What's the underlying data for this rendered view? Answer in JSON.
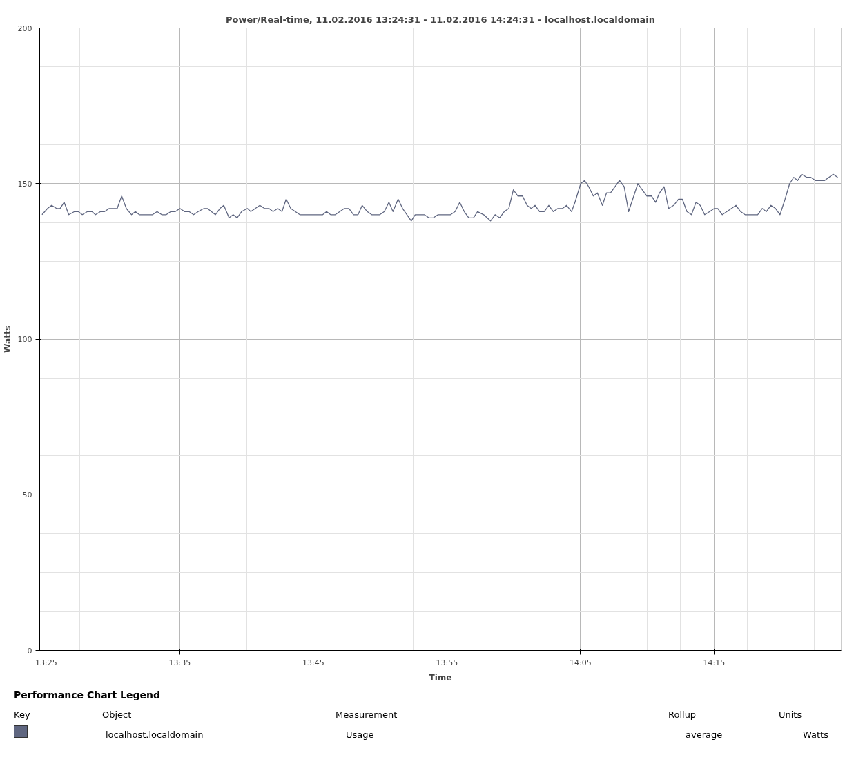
{
  "chart_data": {
    "type": "line",
    "title": "Power/Real-time, 11.02.2016 13:24:31 - 11.02.2016 14:24:31 - localhost.localdomain",
    "xlabel": "Time",
    "ylabel": "Watts",
    "legend_title": "Performance Chart Legend",
    "legend": "bottom",
    "grid": true,
    "marker": "none",
    "line_style": "solid",
    "xlim": [
      13.40861,
      14.40861
    ],
    "ylim": [
      0,
      200
    ],
    "xticks": [
      {
        "value": 13.41667,
        "label": "13:25"
      },
      {
        "value": 13.45833,
        "label": null
      },
      {
        "value": 13.5,
        "label": null
      },
      {
        "value": 13.54167,
        "label": null
      },
      {
        "value": 13.58333,
        "label": "13:35"
      },
      {
        "value": 13.625,
        "label": null
      },
      {
        "value": 13.66667,
        "label": null
      },
      {
        "value": 13.70833,
        "label": null
      },
      {
        "value": 13.75,
        "label": "13:45"
      },
      {
        "value": 13.79167,
        "label": null
      },
      {
        "value": 13.83333,
        "label": null
      },
      {
        "value": 13.875,
        "label": null
      },
      {
        "value": 13.91667,
        "label": "13:55"
      },
      {
        "value": 13.95833,
        "label": null
      },
      {
        "value": 14.0,
        "label": null
      },
      {
        "value": 14.04167,
        "label": null
      },
      {
        "value": 14.08333,
        "label": "14:05"
      },
      {
        "value": 14.125,
        "label": null
      },
      {
        "value": 14.16667,
        "label": null
      },
      {
        "value": 14.20833,
        "label": null
      },
      {
        "value": 14.25,
        "label": "14:15"
      },
      {
        "value": 14.29167,
        "label": null
      },
      {
        "value": 14.33333,
        "label": null
      },
      {
        "value": 14.375,
        "label": null
      }
    ],
    "yticks": [
      0,
      {
        "value": 12.5,
        "label": null
      },
      {
        "value": 25,
        "label": null
      },
      {
        "value": 37.5,
        "label": null
      },
      50,
      {
        "value": 62.5,
        "label": null
      },
      {
        "value": 75,
        "label": null
      },
      {
        "value": 87.5,
        "label": null
      },
      100,
      {
        "value": 112.5,
        "label": null
      },
      {
        "value": 125,
        "label": null
      },
      {
        "value": 137.5,
        "label": null
      },
      150,
      {
        "value": 162.5,
        "label": null
      },
      {
        "value": 175,
        "label": null
      },
      {
        "value": 187.5,
        "label": null
      },
      200
    ],
    "annotations": [
      "Key",
      "Object",
      "Measurement",
      "Rollup",
      "Units",
      "Usage",
      "average",
      "Watts"
    ],
    "series": [
      {
        "name": "localhost.localdomain",
        "color": "#5f6680",
        "x": [
          13.4115,
          13.4184,
          13.4235,
          13.4297,
          13.434,
          13.4391,
          13.4449,
          13.452,
          13.4568,
          13.4617,
          13.4682,
          13.4739,
          13.4782,
          13.4845,
          13.4896,
          13.4953,
          13.5053,
          13.5109,
          13.5167,
          13.5232,
          13.528,
          13.5329,
          13.5494,
          13.5551,
          13.5609,
          13.5665,
          13.5722,
          13.5779,
          13.5836,
          13.5893,
          13.595,
          13.6007,
          13.6064,
          13.6135,
          13.6178,
          13.6278,
          13.6335,
          13.6383,
          13.6449,
          13.65,
          13.6549,
          13.6605,
          13.6677,
          13.672,
          13.6776,
          13.6833,
          13.6891,
          13.6947,
          13.6998,
          13.7056,
          13.7109,
          13.7161,
          13.7218,
          13.7275,
          13.7332,
          13.7432,
          13.7617,
          13.7665,
          13.7716,
          13.7774,
          13.7887,
          13.7944,
          13.8002,
          13.8058,
          13.811,
          13.8173,
          13.8229,
          13.8329,
          13.8386,
          13.8443,
          13.8494,
          13.8558,
          13.8614,
          13.8722,
          13.8771,
          13.8885,
          13.8942,
          13.8998,
          13.9056,
          13.9212,
          13.9269,
          13.9327,
          13.9383,
          13.944,
          13.9498,
          13.9549,
          13.9626,
          13.9711,
          13.9768,
          13.9825,
          13.9882,
          13.9939,
          13.9996,
          14.0053,
          14.011,
          14.0167,
          14.0218,
          14.0267,
          14.0323,
          14.038,
          14.0438,
          14.0494,
          14.0551,
          14.0609,
          14.066,
          14.0722,
          14.0765,
          14.0836,
          14.0885,
          14.0936,
          14.0993,
          14.1044,
          14.1107,
          14.1158,
          14.1207,
          14.132,
          14.1378,
          14.1434,
          14.1549,
          14.1605,
          14.1662,
          14.172,
          14.1771,
          14.1819,
          14.1876,
          14.1933,
          14.1996,
          14.2056,
          14.2104,
          14.2161,
          14.2218,
          14.2275,
          14.2327,
          14.2383,
          14.2446,
          14.2503,
          14.2546,
          14.2603,
          14.2774,
          14.2831,
          14.2887,
          14.3044,
          14.3101,
          14.3152,
          14.3209,
          14.3267,
          14.3323,
          14.3386,
          14.3443,
          14.3494,
          14.3543,
          14.3594,
          14.3657,
          14.3708,
          14.3765,
          14.388,
          14.3986,
          14.4043
        ],
        "values": [
          140,
          142,
          143,
          142,
          142,
          144,
          140,
          141,
          141,
          140,
          141,
          141,
          140,
          141,
          141,
          142,
          142,
          146,
          142,
          140,
          141,
          140,
          140,
          141,
          140,
          140,
          141,
          141,
          142,
          141,
          141,
          140,
          141,
          142,
          142,
          140,
          142,
          143,
          139,
          140,
          139,
          141,
          142,
          141,
          142,
          143,
          142,
          142,
          141,
          142,
          141,
          145,
          142,
          141,
          140,
          140,
          140,
          141,
          140,
          140,
          142,
          142,
          140,
          140,
          143,
          141,
          140,
          140,
          141,
          144,
          141,
          145,
          142,
          138,
          140,
          140,
          139,
          139,
          140,
          140,
          141,
          144,
          141,
          139,
          139,
          141,
          140,
          138,
          140,
          139,
          141,
          142,
          148,
          146,
          146,
          143,
          142,
          143,
          141,
          141,
          143,
          141,
          142,
          142,
          143,
          141,
          144,
          150,
          151,
          149,
          146,
          147,
          143,
          147,
          147,
          151,
          149,
          141,
          150,
          148,
          146,
          146,
          144,
          147,
          149,
          142,
          143,
          145,
          145,
          141,
          140,
          144,
          143,
          140,
          141,
          142,
          142,
          140,
          143,
          141,
          140,
          140,
          142,
          141,
          143,
          142,
          140,
          145,
          150,
          152,
          151,
          153,
          152,
          152,
          151,
          151,
          153,
          152
        ]
      }
    ]
  }
}
